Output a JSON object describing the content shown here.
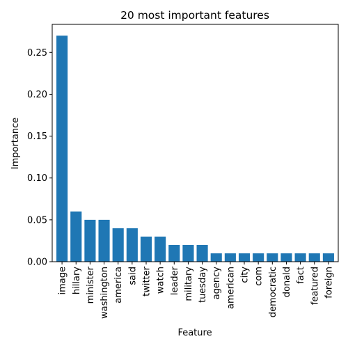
{
  "chart_data": {
    "type": "bar",
    "title": "20 most important features",
    "xlabel": "Feature",
    "ylabel": "Importance",
    "ylim": [
      0,
      0.2835
    ],
    "yticks": [
      "0.00",
      "0.05",
      "0.10",
      "0.15",
      "0.20",
      "0.25"
    ],
    "bar_color": "#1f77b4",
    "grid": false,
    "categories": [
      "image",
      "hillary",
      "minister",
      "washington",
      "america",
      "said",
      "twitter",
      "watch",
      "leader",
      "military",
      "tuesday",
      "agency",
      "american",
      "city",
      "com",
      "democratic",
      "donald",
      "fact",
      "featured",
      "foreign"
    ],
    "values": [
      0.27,
      0.06,
      0.05,
      0.05,
      0.04,
      0.04,
      0.03,
      0.03,
      0.02,
      0.02,
      0.02,
      0.01,
      0.01,
      0.01,
      0.01,
      0.01,
      0.01,
      0.01,
      0.01,
      0.01
    ]
  }
}
